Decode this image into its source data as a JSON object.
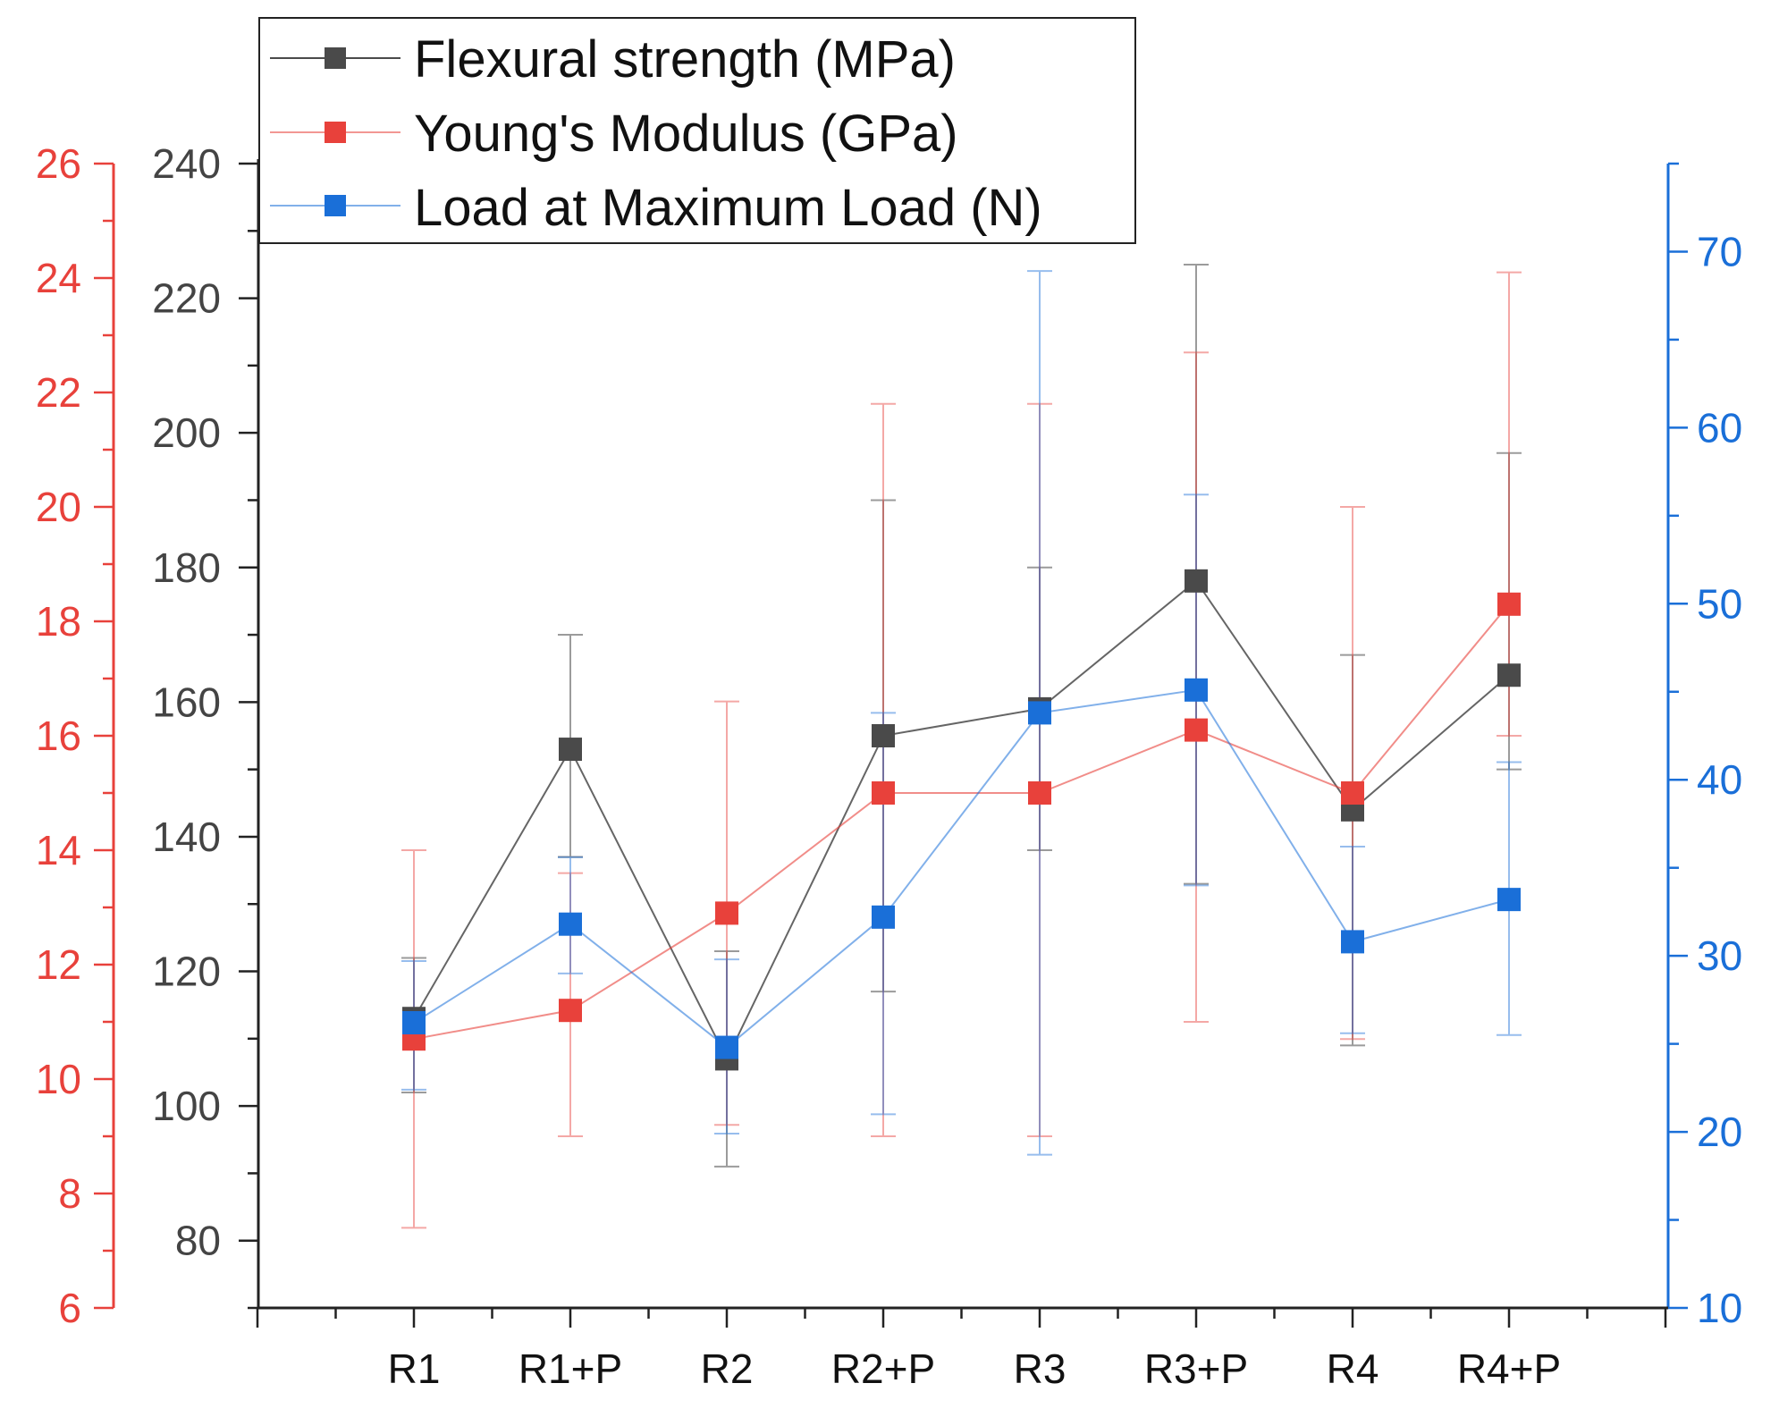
{
  "chart_data": {
    "type": "line",
    "title": "",
    "categories": [
      "R1",
      "R1+P",
      "R2",
      "R2+P",
      "R3",
      "R3+P",
      "R4",
      "R4+P"
    ],
    "colors": {
      "strength": "#4a4a4a",
      "modulus": "#e8413b",
      "load": "#1a6fd8"
    },
    "axes": {
      "left_outer": {
        "range": [
          6,
          26
        ],
        "ticks": [
          6,
          8,
          10,
          12,
          14,
          16,
          18,
          20,
          22,
          24,
          26
        ],
        "labels": [
          "6",
          "8",
          "10",
          "12",
          "14",
          "16",
          "18",
          "20",
          "22",
          "24",
          "26"
        ],
        "series": "modulus"
      },
      "left_inner": {
        "range": [
          70,
          240
        ],
        "ticks": [
          80,
          100,
          120,
          140,
          160,
          180,
          200,
          220,
          240
        ],
        "labels": [
          "80",
          "100",
          "120",
          "140",
          "160",
          "180",
          "200",
          "220",
          "240"
        ],
        "series": "strength"
      },
      "right": {
        "range": [
          10,
          75
        ],
        "ticks": [
          10,
          20,
          30,
          40,
          50,
          60,
          70
        ],
        "labels": [
          "10",
          "20",
          "30",
          "40",
          "50",
          "60",
          "70"
        ],
        "series": "load"
      }
    },
    "series": [
      {
        "key": "strength",
        "name": "Flexural strength (MPa)",
        "values": [
          113,
          153,
          107,
          155,
          159,
          178,
          144,
          164
        ],
        "error_low": [
          102,
          137,
          91,
          117,
          138,
          133,
          109,
          150
        ],
        "error_high": [
          122,
          170,
          123,
          190,
          180,
          225,
          167,
          197
        ]
      },
      {
        "key": "modulus",
        "name": "Young's Modulus (GPa)",
        "values": [
          10.7,
          11.2,
          12.9,
          15.0,
          15.0,
          16.1,
          15.0,
          18.3
        ],
        "error_low": [
          7.4,
          9.0,
          9.2,
          9.0,
          9.0,
          11.0,
          10.7,
          16.0
        ],
        "error_high": [
          14.0,
          13.6,
          16.6,
          21.8,
          21.8,
          22.7,
          20.0,
          24.1
        ]
      },
      {
        "key": "load",
        "name": "Load at Maximum Load (N)",
        "values": [
          26.2,
          31.8,
          24.8,
          32.2,
          43.8,
          45.1,
          30.8,
          33.2
        ],
        "error_low": [
          22.4,
          29.0,
          19.9,
          21.0,
          18.7,
          34.0,
          25.6,
          25.5
        ],
        "error_high": [
          29.7,
          35.6,
          29.8,
          43.8,
          68.9,
          56.2,
          36.2,
          41.0
        ]
      }
    ]
  }
}
